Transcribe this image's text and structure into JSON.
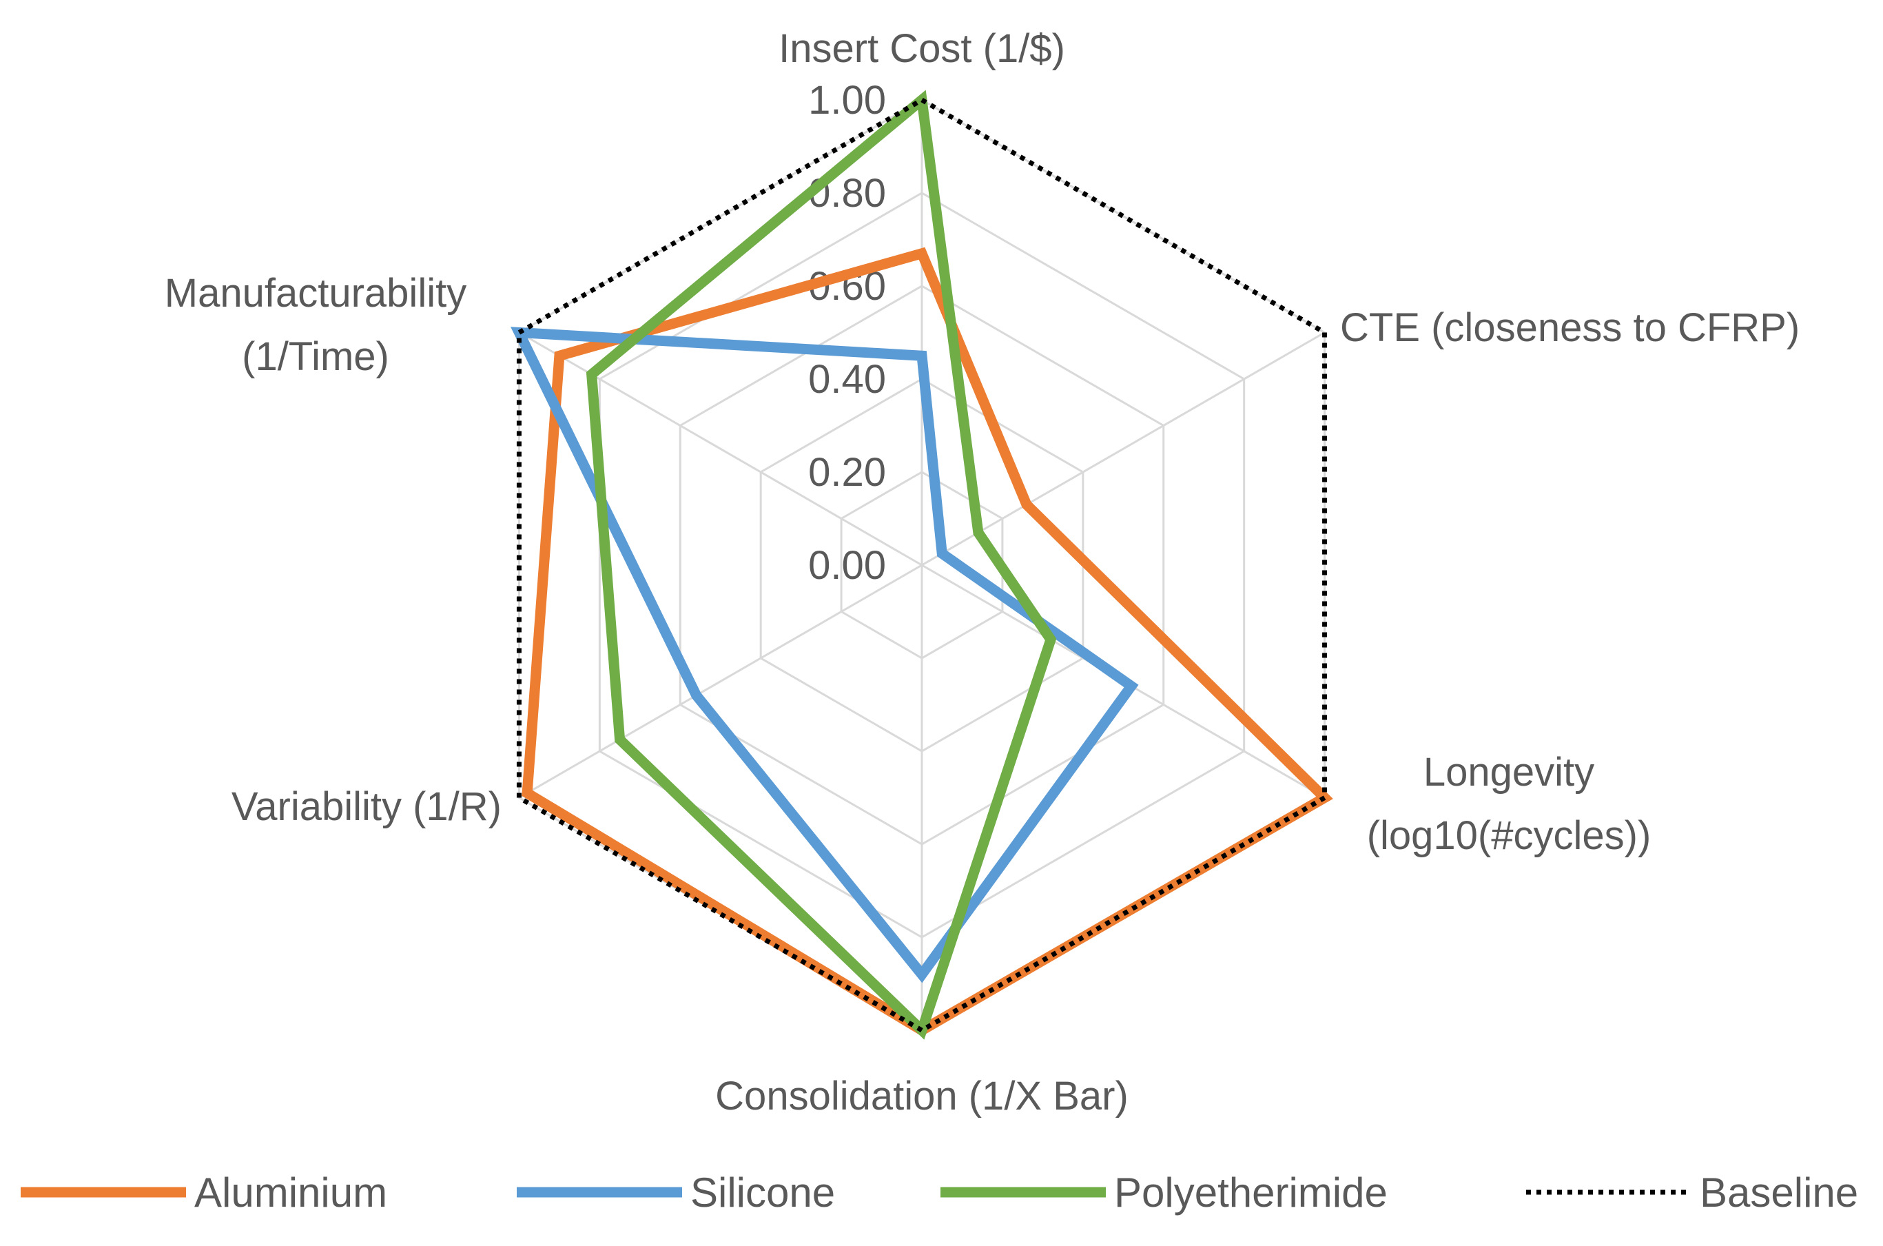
{
  "chart_data": {
    "type": "radar",
    "axes": [
      {
        "id": "cost",
        "lines": [
          "Insert Cost (1/$)"
        ]
      },
      {
        "id": "cte",
        "lines": [
          "CTE (closeness to CFRP)"
        ]
      },
      {
        "id": "longevity",
        "lines": [
          "Longevity",
          "(log10(#cycles))"
        ]
      },
      {
        "id": "consolidation",
        "lines": [
          "Consolidation (1/X Bar)"
        ]
      },
      {
        "id": "variability",
        "lines": [
          "Variability (1/R)"
        ]
      },
      {
        "id": "manufacturability",
        "lines": [
          "Manufacturability",
          "(1/Time)"
        ]
      }
    ],
    "range": [
      0,
      1
    ],
    "ticks": [
      "0.00",
      "0.20",
      "0.40",
      "0.60",
      "0.80",
      "1.00"
    ],
    "tick_values": [
      0,
      0.2,
      0.4,
      0.6,
      0.8,
      1.0
    ],
    "series": [
      {
        "name": "Aluminium",
        "color": "#ed7d31",
        "style": "solid",
        "values": [
          0.67,
          0.26,
          1.0,
          1.0,
          0.98,
          0.9
        ]
      },
      {
        "name": "Silicone",
        "color": "#5b9bd5",
        "style": "solid",
        "values": [
          0.45,
          0.05,
          0.52,
          0.88,
          0.56,
          1.0
        ]
      },
      {
        "name": "Polyetherimide",
        "color": "#70ad47",
        "style": "solid",
        "values": [
          1.0,
          0.14,
          0.32,
          1.0,
          0.75,
          0.82
        ]
      },
      {
        "name": "Baseline",
        "color": "#000000",
        "style": "dotted",
        "values": [
          1.0,
          1.0,
          1.0,
          1.0,
          1.0,
          1.0
        ]
      }
    ],
    "legend": "bottom"
  }
}
